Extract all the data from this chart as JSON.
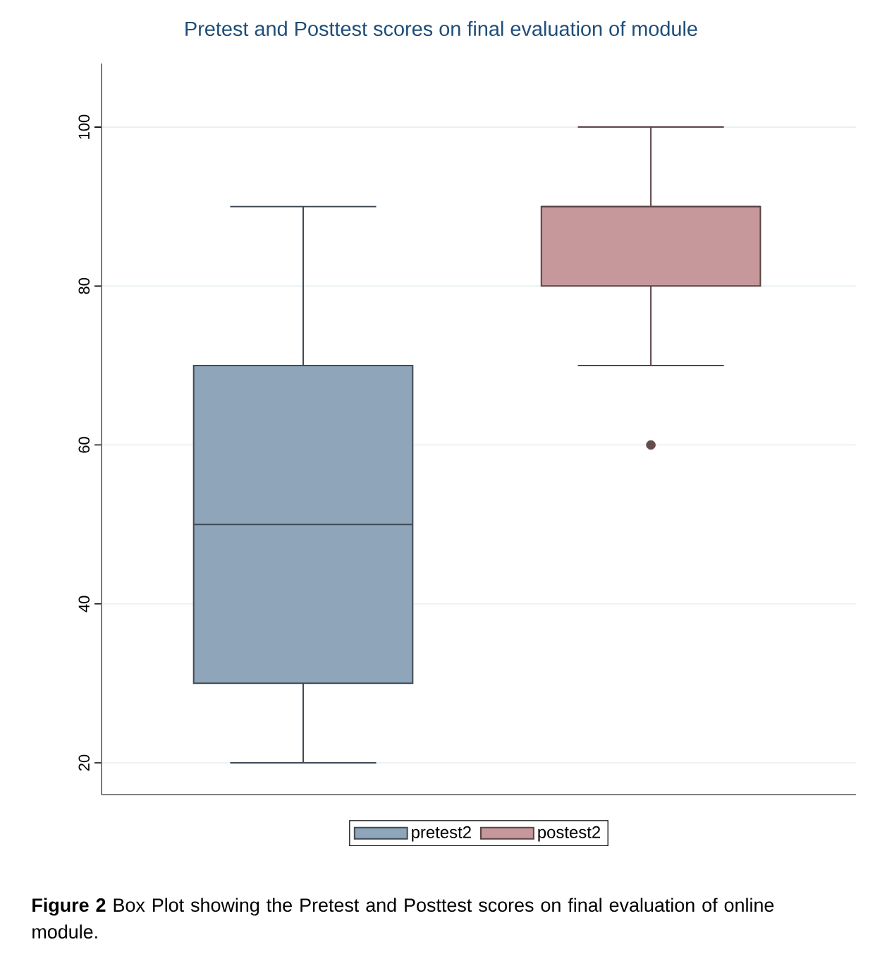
{
  "chart_data": {
    "type": "box",
    "title": "Pretest and Posttest scores on final evaluation of module",
    "categories": [
      null
    ],
    "series": [
      {
        "name": "pretest2",
        "color": "#8ea5ba",
        "boxes": [
          {
            "low": 20,
            "q1": 30,
            "median": 50,
            "q3": 70,
            "high": 90
          }
        ]
      },
      {
        "name": "postest2",
        "color": "#c7989b",
        "boxes": [
          {
            "low": 70,
            "q1": 80,
            "median": 90,
            "q3": 90,
            "high": 100,
            "outliers": [
              60
            ]
          }
        ]
      }
    ],
    "ylim": [
      16,
      108
    ],
    "yticks": [
      20,
      40,
      60,
      80,
      100
    ],
    "grid": "y",
    "legend": "bottom",
    "tick_labels": "y",
    "annotations": [
      "**Figure 2** Box Plot showing the Pretest and Posttest scores on final evaluation of online module."
    ]
  }
}
